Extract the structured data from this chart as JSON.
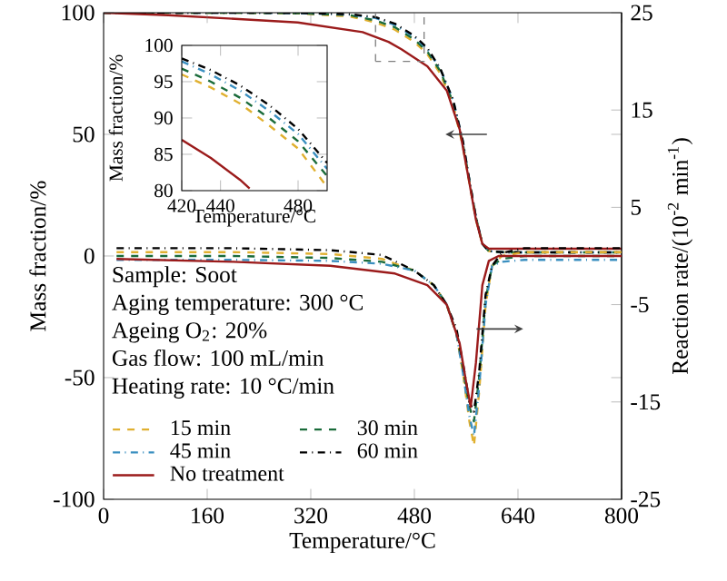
{
  "chart_data": [
    {
      "type": "line",
      "xlabel": "Temperature/°C",
      "ylabel": "Mass fraction/%",
      "y2label": "Reaction rate/(10$^{-2}$ min$^{-1}$)",
      "xlim": [
        0,
        800
      ],
      "xticks": [
        0,
        160,
        320,
        480,
        640,
        800
      ],
      "ylim": [
        -100,
        100
      ],
      "yticks": [
        -100,
        -50,
        0,
        50,
        100
      ],
      "y2lim": [
        -25,
        25
      ],
      "y2ticks": [
        -25,
        -15,
        -5,
        5,
        15,
        25
      ],
      "legend": "bottom left",
      "marker": "none",
      "annotations": [
        "Sample: Soot",
        "Aging temperature: 300 °C",
        "Ageing O$_{2}$: 20%",
        "Gas flow: 100 mL/min",
        "Heating rate: 10 °C/min"
      ],
      "series": [
        {
          "name": "15 min",
          "color": "#e0b030",
          "line_style": "dashed",
          "x": [
            0,
            200,
            300,
            380,
            420,
            450,
            480,
            500,
            520,
            540,
            555,
            565,
            575,
            585,
            595,
            620,
            800
          ],
          "values": [
            100,
            100,
            99.7,
            98.5,
            96,
            93,
            88,
            83,
            75,
            62,
            45,
            30,
            15,
            5,
            2,
            1.5,
            1.5
          ]
        },
        {
          "name": "30 min",
          "color": "#1a6b3a",
          "line_style": "dashed",
          "x": [
            0,
            200,
            300,
            380,
            420,
            450,
            480,
            500,
            520,
            540,
            555,
            565,
            575,
            585,
            595,
            620,
            800
          ],
          "values": [
            100,
            100,
            99.8,
            99,
            96.8,
            94,
            89,
            84,
            76,
            63,
            46,
            31,
            16,
            5,
            2,
            1.5,
            1.5
          ]
        },
        {
          "name": "45 min",
          "color": "#3a8fc0",
          "line_style": "dashdot",
          "x": [
            0,
            200,
            300,
            380,
            420,
            450,
            480,
            500,
            520,
            540,
            555,
            565,
            575,
            585,
            595,
            620,
            800
          ],
          "values": [
            100,
            100,
            99.8,
            99.2,
            97.8,
            95,
            90,
            85,
            77,
            64,
            47,
            31,
            16,
            5,
            2,
            1.5,
            1.5
          ]
        },
        {
          "name": "60 min",
          "color": "#000000",
          "line_style": "dashdot",
          "x": [
            0,
            200,
            300,
            380,
            420,
            450,
            480,
            500,
            520,
            540,
            555,
            565,
            575,
            585,
            595,
            620,
            800
          ],
          "values": [
            100,
            100,
            99.9,
            99.4,
            98.2,
            95.5,
            90.5,
            85.5,
            77,
            64,
            47,
            31,
            16,
            5,
            2,
            1.5,
            1.5
          ]
        },
        {
          "name": "No treatment",
          "color": "#9b1b1b",
          "line_style": "solid",
          "x": [
            0,
            100,
            200,
            300,
            400,
            440,
            460,
            500,
            530,
            550,
            565,
            575,
            585,
            595,
            620,
            800
          ],
          "values": [
            100,
            99,
            97.5,
            96,
            92,
            88,
            85,
            78,
            68,
            52,
            30,
            15,
            5,
            3,
            3,
            3
          ]
        },
        {
          "color": "#e0b030",
          "line_style": "dashed",
          "axis": "y2",
          "x": [
            20,
            200,
            350,
            430,
            480,
            510,
            530,
            545,
            555,
            565,
            572,
            580,
            590,
            600,
            615,
            650,
            800
          ],
          "values": [
            0.4,
            0.4,
            0.2,
            -0.3,
            -1.5,
            -3,
            -5,
            -8,
            -12,
            -17,
            -19.5,
            -14,
            -5,
            -1,
            0,
            0.4,
            0.4
          ]
        },
        {
          "color": "#1a6b3a",
          "line_style": "dashed",
          "axis": "y2",
          "x": [
            20,
            200,
            350,
            430,
            480,
            510,
            530,
            545,
            555,
            565,
            572,
            580,
            590,
            600,
            615,
            650,
            800
          ],
          "values": [
            0,
            0,
            -0.2,
            -0.6,
            -1.5,
            -3,
            -5,
            -8,
            -11.5,
            -15.5,
            -17,
            -12.5,
            -4.5,
            -1,
            -0.3,
            0,
            0
          ]
        },
        {
          "color": "#3a8fc0",
          "line_style": "dashdot",
          "axis": "y2",
          "x": [
            20,
            200,
            350,
            430,
            480,
            510,
            530,
            545,
            555,
            565,
            572,
            580,
            590,
            600,
            615,
            650,
            800
          ],
          "values": [
            -0.4,
            -0.4,
            -0.5,
            -0.8,
            -1.5,
            -3,
            -5,
            -8,
            -12,
            -16.5,
            -18.5,
            -13.5,
            -5,
            -1,
            -0.6,
            -0.4,
            -0.4
          ]
        },
        {
          "color": "#000000",
          "line_style": "dashdot",
          "axis": "y2",
          "x": [
            20,
            200,
            350,
            430,
            480,
            510,
            530,
            545,
            555,
            565,
            572,
            580,
            590,
            600,
            615,
            650,
            800
          ],
          "values": [
            0.8,
            0.8,
            0.6,
            0.1,
            -1.5,
            -3,
            -5,
            -7.5,
            -11,
            -15,
            -16,
            -12,
            -4,
            -1,
            0.3,
            0.8,
            0.8
          ]
        },
        {
          "color": "#9b1b1b",
          "line_style": "solid",
          "axis": "y2",
          "x": [
            20,
            200,
            350,
            450,
            500,
            530,
            550,
            560,
            567,
            575,
            585,
            595,
            610,
            650,
            800
          ],
          "values": [
            -0.3,
            -0.6,
            -1,
            -1.8,
            -3,
            -5,
            -9,
            -13,
            -15.5,
            -11,
            -3,
            -0.5,
            0,
            0,
            0
          ]
        }
      ]
    },
    {
      "type": "line",
      "xlabel": "Temperature/°C",
      "ylabel": "Mass fraction/%",
      "xlim": [
        420,
        495
      ],
      "xticks": [
        420,
        440,
        480
      ],
      "ylim": [
        80,
        100
      ],
      "yticks": [
        80,
        85,
        90,
        95,
        100
      ],
      "marker": "none",
      "series": [
        {
          "color": "#e0b030",
          "line_style": "dashed",
          "x": [
            420,
            435,
            450,
            465,
            480,
            495
          ],
          "values": [
            96,
            94.2,
            92,
            89,
            85.8,
            80.5
          ]
        },
        {
          "color": "#1a6b3a",
          "line_style": "dashed",
          "x": [
            420,
            435,
            450,
            465,
            480,
            495
          ],
          "values": [
            96.8,
            95,
            92.8,
            90,
            86.8,
            82
          ]
        },
        {
          "color": "#3a8fc0",
          "line_style": "dashdot",
          "x": [
            420,
            435,
            450,
            465,
            480,
            495
          ],
          "values": [
            97.8,
            96,
            93.8,
            91,
            87.8,
            83
          ]
        },
        {
          "color": "#000000",
          "line_style": "dashdot",
          "x": [
            420,
            435,
            450,
            465,
            480,
            495
          ],
          "values": [
            98.2,
            96.6,
            94.5,
            91.8,
            88.5,
            83.8
          ]
        },
        {
          "color": "#9b1b1b",
          "line_style": "solid",
          "x": [
            420,
            435,
            450,
            455
          ],
          "values": [
            87,
            84.5,
            81.5,
            80.3
          ]
        }
      ]
    }
  ]
}
